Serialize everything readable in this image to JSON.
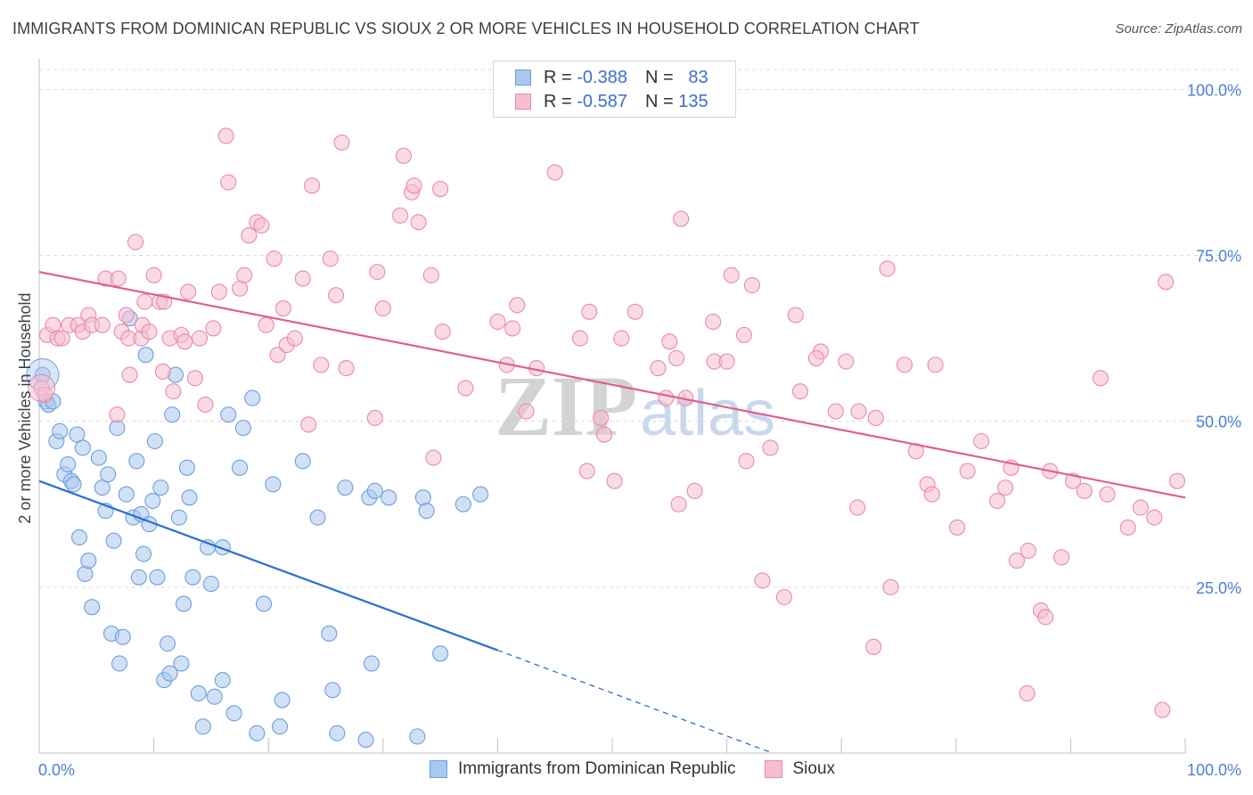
{
  "title": "IMMIGRANTS FROM DOMINICAN REPUBLIC VS SIOUX 2 OR MORE VEHICLES IN HOUSEHOLD CORRELATION CHART",
  "source": "Source: ZipAtlas.com",
  "watermark": {
    "zip": "ZIP",
    "atlas": "atlas"
  },
  "legend_top": [
    {
      "r_label": "R =",
      "r_value": "-0.388",
      "n_label": "N =",
      "n_value": "83"
    },
    {
      "r_label": "R =",
      "r_value": "-0.587",
      "n_label": "N =",
      "n_value": "135"
    }
  ],
  "colors": {
    "blue_fill": "#a9c8ef",
    "blue_stroke": "#6e9fdc",
    "blue_line": "#2a6fd0",
    "pink_fill": "#f6bdd0",
    "pink_stroke": "#e98aa9",
    "pink_line": "#e0608a",
    "tick_text": "#4a7fd6",
    "grid": "#dcdcdc"
  },
  "chart_data": {
    "type": "scatter",
    "xlabel": "",
    "ylabel": "2 or more Vehicles in Household",
    "xlim": [
      0,
      100
    ],
    "ylim": [
      0,
      103
    ],
    "x_tick_labels": [
      {
        "value": 0,
        "label": "0.0%"
      },
      {
        "value": 100,
        "label": "100.0%"
      }
    ],
    "y_tick_labels": [
      {
        "value": 25,
        "label": "25.0%"
      },
      {
        "value": 50,
        "label": "50.0%"
      },
      {
        "value": 75,
        "label": "75.0%"
      },
      {
        "value": 100,
        "label": "100.0%"
      }
    ],
    "series": [
      {
        "name": "Immigrants from Dominican Republic",
        "color": "blue",
        "R": -0.388,
        "N": 83,
        "trend": {
          "x0": 0,
          "y0": 41,
          "x1": 40,
          "y1": 15.5,
          "dash_to_x": 64,
          "dash_to_y": 0
        },
        "points": [
          [
            0.3,
            57
          ],
          [
            0.6,
            53
          ],
          [
            0.8,
            52.5
          ],
          [
            1.2,
            53
          ],
          [
            1.5,
            47
          ],
          [
            1.8,
            48.5
          ],
          [
            2.2,
            42
          ],
          [
            2.5,
            43.5
          ],
          [
            2.8,
            41
          ],
          [
            3,
            40.5
          ],
          [
            3.3,
            48
          ],
          [
            3.5,
            32.5
          ],
          [
            3.8,
            46
          ],
          [
            4,
            27
          ],
          [
            4.3,
            29
          ],
          [
            4.6,
            22
          ],
          [
            5.2,
            44.5
          ],
          [
            5.5,
            40
          ],
          [
            5.8,
            36.5
          ],
          [
            6,
            42
          ],
          [
            6.3,
            18
          ],
          [
            6.5,
            32
          ],
          [
            6.8,
            49
          ],
          [
            7,
            13.5
          ],
          [
            7.3,
            17.5
          ],
          [
            7.6,
            39
          ],
          [
            7.9,
            65.5
          ],
          [
            8.2,
            35.5
          ],
          [
            8.5,
            44
          ],
          [
            8.7,
            26.5
          ],
          [
            8.9,
            36
          ],
          [
            9.1,
            30
          ],
          [
            9.3,
            60
          ],
          [
            9.6,
            34.5
          ],
          [
            9.9,
            38
          ],
          [
            10.1,
            47
          ],
          [
            10.3,
            26.5
          ],
          [
            10.6,
            40
          ],
          [
            10.9,
            11
          ],
          [
            11.2,
            16.5
          ],
          [
            11.4,
            12
          ],
          [
            11.6,
            51
          ],
          [
            11.9,
            57
          ],
          [
            12.2,
            35.5
          ],
          [
            12.4,
            13.5
          ],
          [
            12.6,
            22.5
          ],
          [
            12.9,
            43
          ],
          [
            13.1,
            38.5
          ],
          [
            13.4,
            26.5
          ],
          [
            13.9,
            9
          ],
          [
            14.3,
            4
          ],
          [
            14.7,
            31
          ],
          [
            15,
            25.5
          ],
          [
            15.3,
            8.5
          ],
          [
            16,
            31
          ],
          [
            16.5,
            51
          ],
          [
            17,
            6
          ],
          [
            17.5,
            43
          ],
          [
            17.8,
            49
          ],
          [
            18.6,
            53.5
          ],
          [
            19,
            3
          ],
          [
            19.6,
            22.5
          ],
          [
            20.4,
            40.5
          ],
          [
            21,
            4
          ],
          [
            21.2,
            8
          ],
          [
            23,
            44
          ],
          [
            24.3,
            35.5
          ],
          [
            25.3,
            18
          ],
          [
            25.6,
            9.5
          ],
          [
            26,
            3
          ],
          [
            26.7,
            40
          ],
          [
            28.5,
            2
          ],
          [
            28.8,
            38.5
          ],
          [
            29,
            13.5
          ],
          [
            29.3,
            39.5
          ],
          [
            30.5,
            38.5
          ],
          [
            33,
            2.5
          ],
          [
            33.5,
            38.5
          ],
          [
            33.8,
            36.5
          ],
          [
            35,
            15
          ],
          [
            37,
            37.5
          ],
          [
            38.5,
            39
          ],
          [
            16,
            11
          ]
        ]
      },
      {
        "name": "Sioux",
        "color": "pink",
        "R": -0.587,
        "N": 135,
        "trend": {
          "x0": 0,
          "y0": 72.5,
          "x1": 100,
          "y1": 38.5
        },
        "points": [
          [
            0.2,
            55
          ],
          [
            0.5,
            54
          ],
          [
            0.7,
            63
          ],
          [
            1.2,
            64.5
          ],
          [
            1.6,
            62.5
          ],
          [
            2,
            62.5
          ],
          [
            2.6,
            64.5
          ],
          [
            3.4,
            64.5
          ],
          [
            3.8,
            63.5
          ],
          [
            4.3,
            66
          ],
          [
            4.6,
            64.5
          ],
          [
            5.5,
            64.5
          ],
          [
            5.8,
            71.5
          ],
          [
            6.8,
            51
          ],
          [
            6.9,
            71.5
          ],
          [
            7.2,
            63.5
          ],
          [
            7.6,
            66
          ],
          [
            7.8,
            62.5
          ],
          [
            7.9,
            57
          ],
          [
            8.4,
            77
          ],
          [
            8.9,
            62.5
          ],
          [
            9,
            64.5
          ],
          [
            9.2,
            68
          ],
          [
            9.6,
            63.5
          ],
          [
            10,
            72
          ],
          [
            10.5,
            68
          ],
          [
            10.8,
            57.5
          ],
          [
            10.9,
            68
          ],
          [
            11.4,
            62.5
          ],
          [
            11.7,
            54.5
          ],
          [
            12.4,
            63
          ],
          [
            12.7,
            62
          ],
          [
            13,
            69.5
          ],
          [
            13.6,
            56.5
          ],
          [
            14,
            62.5
          ],
          [
            14.5,
            52.5
          ],
          [
            15.2,
            64
          ],
          [
            15.7,
            69.5
          ],
          [
            16.3,
            93
          ],
          [
            16.5,
            86
          ],
          [
            17.5,
            70
          ],
          [
            17.9,
            72
          ],
          [
            18.3,
            78
          ],
          [
            19,
            80
          ],
          [
            19.4,
            79.5
          ],
          [
            19.8,
            64.5
          ],
          [
            20.5,
            74.5
          ],
          [
            20.8,
            60
          ],
          [
            21.3,
            67
          ],
          [
            21.6,
            61.5
          ],
          [
            22.3,
            62.5
          ],
          [
            23,
            71.5
          ],
          [
            23.5,
            49.5
          ],
          [
            23.8,
            85.5
          ],
          [
            24.6,
            58.5
          ],
          [
            25.4,
            74.5
          ],
          [
            25.9,
            69
          ],
          [
            26.4,
            92
          ],
          [
            26.8,
            58
          ],
          [
            29.3,
            50.5
          ],
          [
            29.5,
            72.5
          ],
          [
            30,
            67
          ],
          [
            31.5,
            81
          ],
          [
            31.8,
            90
          ],
          [
            32.5,
            84.5
          ],
          [
            32.7,
            85.5
          ],
          [
            33.1,
            80
          ],
          [
            34.2,
            72
          ],
          [
            34.4,
            44.5
          ],
          [
            35,
            85
          ],
          [
            35.2,
            63.5
          ],
          [
            37.2,
            55
          ],
          [
            40,
            65
          ],
          [
            40.8,
            58.5
          ],
          [
            41.3,
            64
          ],
          [
            41.7,
            67.5
          ],
          [
            42.5,
            51.5
          ],
          [
            43.4,
            58
          ],
          [
            45,
            87.5
          ],
          [
            47.2,
            62.5
          ],
          [
            47.8,
            42.5
          ],
          [
            48,
            66.5
          ],
          [
            49,
            50.5
          ],
          [
            49.3,
            48
          ],
          [
            50.2,
            41
          ],
          [
            50.8,
            62.5
          ],
          [
            52,
            66.5
          ],
          [
            54,
            58
          ],
          [
            54.7,
            53.5
          ],
          [
            55,
            62
          ],
          [
            55.6,
            59.5
          ],
          [
            55.8,
            37.5
          ],
          [
            56,
            80.5
          ],
          [
            56.4,
            53.5
          ],
          [
            57.2,
            39.5
          ],
          [
            58.8,
            65
          ],
          [
            58.9,
            59
          ],
          [
            60,
            59
          ],
          [
            60.4,
            72
          ],
          [
            61.5,
            63
          ],
          [
            61.7,
            44
          ],
          [
            62.2,
            70.5
          ],
          [
            63.1,
            26
          ],
          [
            63.8,
            46
          ],
          [
            65,
            23.5
          ],
          [
            66,
            66
          ],
          [
            66.4,
            54.5
          ],
          [
            68.2,
            60.5
          ],
          [
            67.8,
            59.5
          ],
          [
            69.5,
            51.5
          ],
          [
            70.4,
            59
          ],
          [
            71.4,
            37
          ],
          [
            71.5,
            51.5
          ],
          [
            72.8,
            16
          ],
          [
            73,
            50.5
          ],
          [
            74,
            73
          ],
          [
            74.3,
            25
          ],
          [
            75.5,
            58.5
          ],
          [
            76.5,
            45.5
          ],
          [
            77.5,
            40.5
          ],
          [
            77.9,
            39
          ],
          [
            78.2,
            58.5
          ],
          [
            80.1,
            34
          ],
          [
            81,
            42.5
          ],
          [
            82.2,
            47
          ],
          [
            83.6,
            38
          ],
          [
            84.3,
            40
          ],
          [
            84.8,
            43
          ],
          [
            85.3,
            29
          ],
          [
            86.2,
            9
          ],
          [
            86.3,
            30.5
          ],
          [
            87.4,
            21.5
          ],
          [
            87.8,
            20.5
          ],
          [
            89.2,
            29.5
          ],
          [
            88.2,
            42.5
          ],
          [
            90.2,
            41
          ],
          [
            91.2,
            39.5
          ],
          [
            92.6,
            56.5
          ],
          [
            93.2,
            39
          ],
          [
            95,
            34
          ],
          [
            96.1,
            37
          ],
          [
            97.3,
            35.5
          ],
          [
            98,
            6.5
          ],
          [
            98.3,
            71
          ],
          [
            99.3,
            41
          ]
        ]
      }
    ]
  },
  "legend_bottom": [
    {
      "label": "Immigrants from Dominican Republic",
      "color": "blue"
    },
    {
      "label": "Sioux",
      "color": "pink"
    }
  ]
}
